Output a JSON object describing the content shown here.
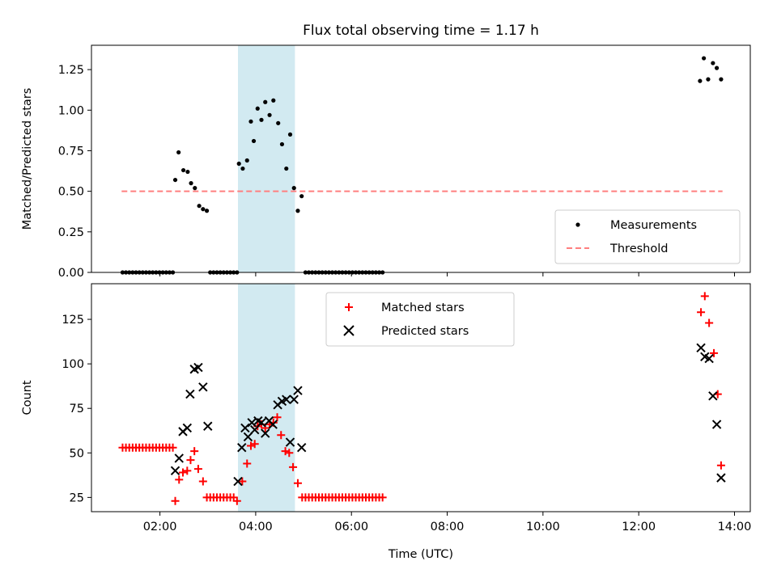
{
  "title": "Flux total observing time = 1.17 h",
  "x_axis": {
    "label": "Time (UTC)",
    "ticks": [
      2,
      4,
      6,
      8,
      10,
      12,
      14
    ],
    "tick_labels": [
      "02:00",
      "04:00",
      "06:00",
      "08:00",
      "10:00",
      "12:00",
      "14:00"
    ],
    "range_hours": [
      0.57,
      14.33
    ]
  },
  "highlight_span_hours": [
    3.63,
    4.82
  ],
  "colors": {
    "highlight": "#add8e6",
    "measurements": "#000000",
    "threshold": "#ff7f7f",
    "matched": "#ff0000",
    "predicted": "#000000"
  },
  "chart_data": [
    {
      "type": "scatter",
      "ylabel": "Matched/Predicted stars",
      "ylim": [
        0,
        1.4
      ],
      "yticks": [
        0.0,
        0.25,
        0.5,
        0.75,
        1.0,
        1.25
      ],
      "ytick_labels": [
        "0.00",
        "0.25",
        "0.50",
        "0.75",
        "1.00",
        "1.25"
      ],
      "legend_position": "lower-right",
      "threshold": {
        "name": "Threshold",
        "value": 0.5,
        "x_range": [
          1.2,
          13.75
        ]
      },
      "series": [
        {
          "name": "Measurements",
          "points": [
            [
              1.22,
              0
            ],
            [
              1.29,
              0
            ],
            [
              1.36,
              0
            ],
            [
              1.43,
              0
            ],
            [
              1.5,
              0
            ],
            [
              1.57,
              0
            ],
            [
              1.64,
              0
            ],
            [
              1.71,
              0
            ],
            [
              1.78,
              0
            ],
            [
              1.85,
              0
            ],
            [
              1.92,
              0
            ],
            [
              1.99,
              0
            ],
            [
              2.06,
              0
            ],
            [
              2.13,
              0
            ],
            [
              2.2,
              0
            ],
            [
              2.27,
              0
            ],
            [
              2.32,
              0.57
            ],
            [
              2.39,
              0.74
            ],
            [
              2.49,
              0.63
            ],
            [
              2.58,
              0.62
            ],
            [
              2.65,
              0.55
            ],
            [
              2.73,
              0.52
            ],
            [
              2.82,
              0.41
            ],
            [
              2.9,
              0.39
            ],
            [
              2.98,
              0.38
            ],
            [
              3.05,
              0
            ],
            [
              3.12,
              0
            ],
            [
              3.19,
              0
            ],
            [
              3.26,
              0
            ],
            [
              3.33,
              0
            ],
            [
              3.4,
              0
            ],
            [
              3.47,
              0
            ],
            [
              3.54,
              0
            ],
            [
              3.61,
              0
            ],
            [
              3.65,
              0.67
            ],
            [
              3.73,
              0.64
            ],
            [
              3.82,
              0.69
            ],
            [
              3.9,
              0.93
            ],
            [
              3.96,
              0.81
            ],
            [
              4.04,
              1.01
            ],
            [
              4.12,
              0.94
            ],
            [
              4.2,
              1.05
            ],
            [
              4.29,
              0.97
            ],
            [
              4.37,
              1.06
            ],
            [
              4.47,
              0.92
            ],
            [
              4.55,
              0.79
            ],
            [
              4.64,
              0.64
            ],
            [
              4.72,
              0.85
            ],
            [
              4.8,
              0.52
            ],
            [
              4.88,
              0.38
            ],
            [
              4.96,
              0.47
            ],
            [
              5.04,
              0
            ],
            [
              5.11,
              0
            ],
            [
              5.18,
              0
            ],
            [
              5.25,
              0
            ],
            [
              5.32,
              0
            ],
            [
              5.39,
              0
            ],
            [
              5.46,
              0
            ],
            [
              5.53,
              0
            ],
            [
              5.6,
              0
            ],
            [
              5.67,
              0
            ],
            [
              5.74,
              0
            ],
            [
              5.81,
              0
            ],
            [
              5.88,
              0
            ],
            [
              5.95,
              0
            ],
            [
              6.02,
              0
            ],
            [
              6.09,
              0
            ],
            [
              6.16,
              0
            ],
            [
              6.23,
              0
            ],
            [
              6.3,
              0
            ],
            [
              6.37,
              0
            ],
            [
              6.44,
              0
            ],
            [
              6.51,
              0
            ],
            [
              6.58,
              0
            ],
            [
              6.65,
              0
            ],
            [
              13.28,
              1.18
            ],
            [
              13.36,
              1.32
            ],
            [
              13.45,
              1.19
            ],
            [
              13.55,
              1.29
            ],
            [
              13.63,
              1.26
            ],
            [
              13.72,
              1.19
            ]
          ]
        }
      ]
    },
    {
      "type": "scatter",
      "ylabel": "Count",
      "ylim": [
        17,
        145
      ],
      "yticks": [
        25,
        50,
        75,
        100,
        125
      ],
      "ytick_labels": [
        "25",
        "50",
        "75",
        "100",
        "125"
      ],
      "legend_position": "upper-center",
      "series": [
        {
          "name": "Matched stars",
          "marker": "plus",
          "points": [
            [
              1.22,
              53
            ],
            [
              1.29,
              53
            ],
            [
              1.36,
              53
            ],
            [
              1.43,
              53
            ],
            [
              1.5,
              53
            ],
            [
              1.57,
              53
            ],
            [
              1.64,
              53
            ],
            [
              1.71,
              53
            ],
            [
              1.78,
              53
            ],
            [
              1.85,
              53
            ],
            [
              1.92,
              53
            ],
            [
              1.99,
              53
            ],
            [
              2.06,
              53
            ],
            [
              2.13,
              53
            ],
            [
              2.2,
              53
            ],
            [
              2.27,
              53
            ],
            [
              2.32,
              23
            ],
            [
              2.4,
              35
            ],
            [
              2.48,
              39
            ],
            [
              2.57,
              40
            ],
            [
              2.64,
              46
            ],
            [
              2.72,
              51
            ],
            [
              2.8,
              41
            ],
            [
              2.9,
              34
            ],
            [
              2.98,
              25
            ],
            [
              3.05,
              25
            ],
            [
              3.12,
              25
            ],
            [
              3.19,
              25
            ],
            [
              3.26,
              25
            ],
            [
              3.33,
              25
            ],
            [
              3.4,
              25
            ],
            [
              3.47,
              25
            ],
            [
              3.54,
              25
            ],
            [
              3.61,
              23
            ],
            [
              3.72,
              34
            ],
            [
              3.82,
              44
            ],
            [
              3.9,
              54
            ],
            [
              3.98,
              55
            ],
            [
              4.04,
              65
            ],
            [
              4.12,
              66
            ],
            [
              4.2,
              64
            ],
            [
              4.29,
              66
            ],
            [
              4.37,
              67
            ],
            [
              4.45,
              70
            ],
            [
              4.53,
              60
            ],
            [
              4.62,
              51
            ],
            [
              4.7,
              50
            ],
            [
              4.78,
              42
            ],
            [
              4.88,
              33
            ],
            [
              4.97,
              25
            ],
            [
              5.04,
              25
            ],
            [
              5.11,
              25
            ],
            [
              5.18,
              25
            ],
            [
              5.25,
              25
            ],
            [
              5.32,
              25
            ],
            [
              5.39,
              25
            ],
            [
              5.46,
              25
            ],
            [
              5.53,
              25
            ],
            [
              5.6,
              25
            ],
            [
              5.67,
              25
            ],
            [
              5.74,
              25
            ],
            [
              5.81,
              25
            ],
            [
              5.88,
              25
            ],
            [
              5.95,
              25
            ],
            [
              6.02,
              25
            ],
            [
              6.09,
              25
            ],
            [
              6.16,
              25
            ],
            [
              6.23,
              25
            ],
            [
              6.3,
              25
            ],
            [
              6.37,
              25
            ],
            [
              6.44,
              25
            ],
            [
              6.51,
              25
            ],
            [
              6.58,
              25
            ],
            [
              6.65,
              25
            ],
            [
              13.3,
              129
            ],
            [
              13.38,
              138
            ],
            [
              13.47,
              123
            ],
            [
              13.57,
              106
            ],
            [
              13.65,
              83
            ],
            [
              13.72,
              43
            ]
          ]
        },
        {
          "name": "Predicted stars",
          "marker": "x",
          "points": [
            [
              2.32,
              40
            ],
            [
              2.4,
              47
            ],
            [
              2.48,
              62
            ],
            [
              2.57,
              64
            ],
            [
              2.63,
              83
            ],
            [
              2.72,
              97
            ],
            [
              2.8,
              98
            ],
            [
              2.9,
              87
            ],
            [
              3.0,
              65
            ],
            [
              3.63,
              34
            ],
            [
              3.71,
              53
            ],
            [
              3.78,
              64
            ],
            [
              3.84,
              59
            ],
            [
              3.92,
              67
            ],
            [
              3.98,
              63
            ],
            [
              4.05,
              68
            ],
            [
              4.12,
              67
            ],
            [
              4.2,
              61
            ],
            [
              4.28,
              68
            ],
            [
              4.36,
              66
            ],
            [
              4.46,
              77
            ],
            [
              4.55,
              79
            ],
            [
              4.64,
              80
            ],
            [
              4.72,
              56
            ],
            [
              4.8,
              80
            ],
            [
              4.88,
              85
            ],
            [
              4.96,
              53
            ],
            [
              13.3,
              109
            ],
            [
              13.38,
              104
            ],
            [
              13.47,
              103
            ],
            [
              13.55,
              82
            ],
            [
              13.63,
              66
            ],
            [
              13.72,
              36
            ]
          ]
        }
      ]
    }
  ]
}
